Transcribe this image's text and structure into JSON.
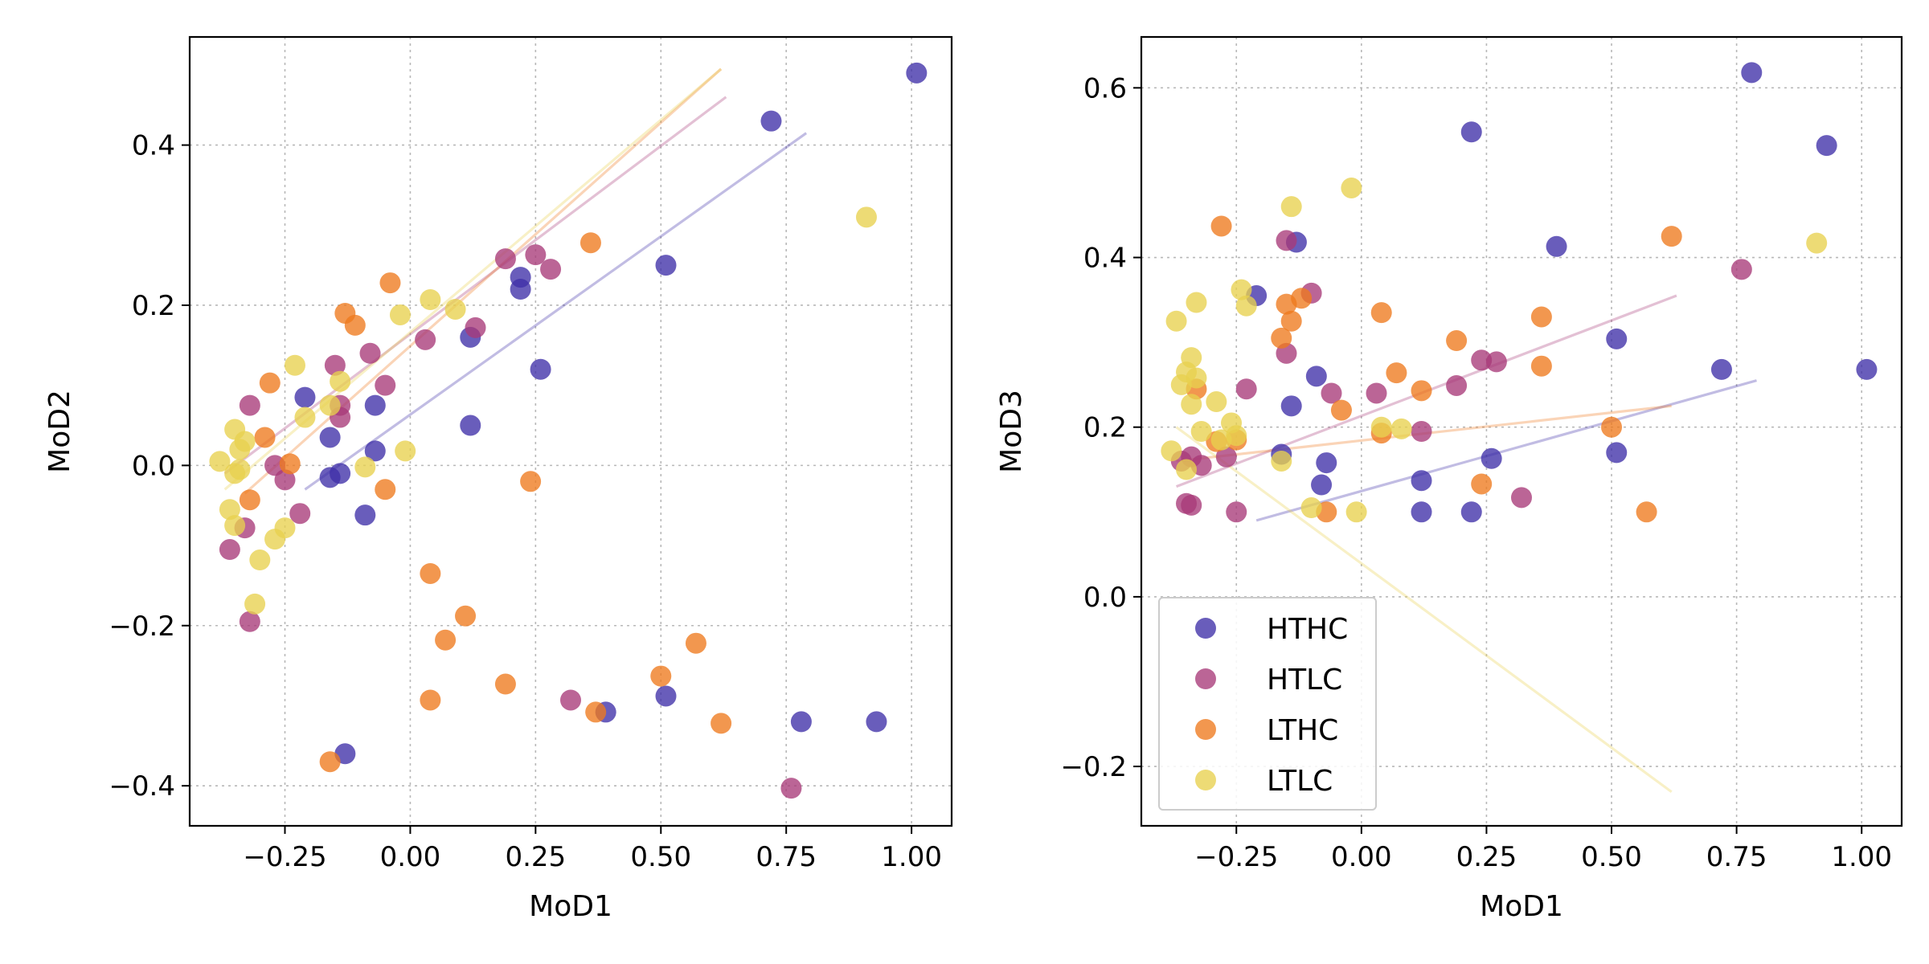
{
  "chart_data": [
    {
      "type": "scatter",
      "xlabel": "MoD1",
      "ylabel": "MoD2",
      "xlim": [
        -0.44,
        1.08
      ],
      "ylim": [
        -0.45,
        0.535
      ],
      "xticks": [
        -0.25,
        0.0,
        0.25,
        0.5,
        0.75,
        1.0
      ],
      "xtick_labels": [
        "−0.25",
        "0.00",
        "0.25",
        "0.50",
        "0.75",
        "1.00"
      ],
      "yticks": [
        -0.4,
        -0.2,
        0.0,
        0.2,
        0.4
      ],
      "ytick_labels": [
        "−0.4",
        "−0.2",
        "0.0",
        "0.2",
        "0.4"
      ],
      "grid": true,
      "series": [
        {
          "name": "HTHC",
          "x": [
            1.01,
            0.72,
            0.51,
            0.22,
            0.22,
            0.26,
            0.12,
            0.12,
            -0.21,
            -0.07,
            -0.16,
            -0.07,
            -0.16,
            -0.14,
            -0.09,
            0.39,
            0.51,
            0.78,
            0.93,
            -0.13
          ],
          "y": [
            0.49,
            0.43,
            0.25,
            0.235,
            0.22,
            0.12,
            0.16,
            0.05,
            0.085,
            0.075,
            0.035,
            0.018,
            -0.015,
            -0.01,
            -0.062,
            -0.308,
            -0.288,
            -0.32,
            -0.32,
            -0.36
          ],
          "trend": {
            "x": [
              -0.21,
              0.79
            ],
            "y": [
              -0.03,
              0.415
            ]
          }
        },
        {
          "name": "HTLC",
          "x": [
            0.19,
            0.25,
            0.28,
            0.13,
            0.03,
            -0.08,
            -0.05,
            -0.15,
            -0.14,
            -0.32,
            -0.14,
            -0.27,
            -0.25,
            -0.22,
            -0.33,
            -0.36,
            -0.32,
            0.32,
            0.76
          ],
          "y": [
            0.258,
            0.263,
            0.245,
            0.172,
            0.157,
            0.14,
            0.1,
            0.125,
            0.075,
            0.075,
            0.06,
            0.0,
            -0.018,
            -0.06,
            -0.078,
            -0.105,
            -0.195,
            -0.293,
            -0.403
          ],
          "trend": {
            "x": [
              -0.37,
              0.63
            ],
            "y": [
              -0.01,
              0.46
            ]
          }
        },
        {
          "name": "LTHC",
          "x": [
            -0.04,
            0.36,
            -0.13,
            -0.11,
            -0.28,
            -0.29,
            -0.24,
            -0.32,
            -0.05,
            0.24,
            0.04,
            0.11,
            0.07,
            0.04,
            0.19,
            0.5,
            0.57,
            0.62,
            0.37,
            -0.16
          ],
          "y": [
            0.228,
            0.278,
            0.19,
            0.175,
            0.103,
            0.035,
            0.002,
            -0.043,
            -0.03,
            -0.02,
            -0.135,
            -0.188,
            -0.218,
            -0.293,
            -0.273,
            -0.263,
            -0.222,
            -0.322,
            -0.308,
            -0.37
          ],
          "trend": {
            "x": [
              -0.33,
              0.62
            ],
            "y": [
              -0.035,
              0.495
            ]
          }
        },
        {
          "name": "LTLC",
          "x": [
            0.91,
            0.04,
            0.09,
            -0.02,
            -0.23,
            -0.14,
            -0.16,
            -0.21,
            -0.35,
            -0.33,
            -0.34,
            -0.38,
            -0.35,
            -0.34,
            -0.36,
            -0.35,
            -0.25,
            -0.27,
            -0.3,
            -0.31,
            -0.09,
            -0.01
          ],
          "y": [
            0.31,
            0.207,
            0.195,
            0.188,
            0.125,
            0.105,
            0.075,
            0.06,
            0.045,
            0.03,
            0.02,
            0.005,
            -0.01,
            -0.005,
            -0.055,
            -0.075,
            -0.078,
            -0.092,
            -0.118,
            -0.173,
            -0.002,
            0.018
          ],
          "trend": {
            "x": [
              -0.37,
              0.62
            ],
            "y": [
              -0.03,
              0.495
            ]
          }
        }
      ]
    },
    {
      "type": "scatter",
      "xlabel": "MoD1",
      "ylabel": "MoD3",
      "xlim": [
        -0.44,
        1.08
      ],
      "ylim": [
        -0.27,
        0.66
      ],
      "xticks": [
        -0.25,
        0.0,
        0.25,
        0.5,
        0.75,
        1.0
      ],
      "xtick_labels": [
        "−0.25",
        "0.00",
        "0.25",
        "0.50",
        "0.75",
        "1.00"
      ],
      "yticks": [
        -0.2,
        0.0,
        0.2,
        0.4,
        0.6
      ],
      "ytick_labels": [
        "−0.2",
        "0.0",
        "0.2",
        "0.4",
        "0.6"
      ],
      "grid": true,
      "legend": {
        "position": "lower-left"
      },
      "series": [
        {
          "name": "HTHC",
          "x": [
            0.78,
            0.93,
            1.01,
            0.22,
            0.39,
            0.72,
            -0.21,
            -0.13,
            0.51,
            -0.14,
            -0.09,
            -0.07,
            -0.16,
            -0.08,
            0.51,
            0.26,
            0.12,
            0.12,
            0.22
          ],
          "y": [
            0.618,
            0.532,
            0.268,
            0.548,
            0.413,
            0.268,
            0.355,
            0.418,
            0.304,
            0.225,
            0.26,
            0.158,
            0.168,
            0.132,
            0.17,
            0.163,
            0.137,
            0.1,
            0.1
          ],
          "trend": {
            "x": [
              -0.21,
              0.79
            ],
            "y": [
              0.09,
              0.255
            ]
          }
        },
        {
          "name": "HTLC",
          "x": [
            0.76,
            -0.15,
            -0.1,
            -0.15,
            -0.23,
            0.03,
            -0.06,
            0.24,
            0.27,
            0.19,
            0.12,
            -0.34,
            -0.32,
            -0.36,
            -0.27,
            -0.35,
            -0.34,
            -0.25,
            0.32
          ],
          "y": [
            0.386,
            0.42,
            0.358,
            0.287,
            0.245,
            0.24,
            0.24,
            0.279,
            0.277,
            0.249,
            0.195,
            0.165,
            0.155,
            0.16,
            0.165,
            0.11,
            0.108,
            0.1,
            0.117
          ],
          "trend": {
            "x": [
              -0.37,
              0.63
            ],
            "y": [
              0.13,
              0.355
            ]
          }
        },
        {
          "name": "LTHC",
          "x": [
            -0.28,
            0.62,
            0.04,
            -0.15,
            -0.12,
            -0.14,
            -0.16,
            -0.33,
            0.19,
            0.36,
            0.36,
            0.07,
            0.12,
            -0.04,
            -0.25,
            -0.29,
            0.04,
            0.5,
            0.57,
            0.24,
            -0.07
          ],
          "y": [
            0.437,
            0.425,
            0.335,
            0.345,
            0.352,
            0.325,
            0.305,
            0.245,
            0.302,
            0.33,
            0.272,
            0.264,
            0.243,
            0.22,
            0.185,
            0.183,
            0.193,
            0.2,
            0.1,
            0.133,
            0.1
          ],
          "trend": {
            "x": [
              -0.37,
              0.62
            ],
            "y": [
              0.16,
              0.225
            ]
          }
        },
        {
          "name": "LTLC",
          "x": [
            -0.02,
            -0.14,
            0.91,
            -0.24,
            -0.23,
            -0.37,
            -0.33,
            -0.34,
            -0.35,
            -0.33,
            -0.36,
            -0.34,
            -0.29,
            -0.26,
            -0.25,
            -0.28,
            -0.32,
            -0.35,
            -0.38,
            0.04,
            0.08,
            -0.16,
            -0.1,
            -0.01
          ],
          "y": [
            0.482,
            0.46,
            0.417,
            0.362,
            0.343,
            0.325,
            0.347,
            0.282,
            0.265,
            0.258,
            0.25,
            0.227,
            0.23,
            0.205,
            0.19,
            0.185,
            0.195,
            0.15,
            0.172,
            0.2,
            0.198,
            0.16,
            0.105,
            0.1
          ],
          "trend": {
            "x": [
              -0.37,
              0.62
            ],
            "y": [
              0.2,
              -0.23
            ]
          }
        }
      ]
    }
  ],
  "colors": {
    "HTHC": "#3f2fa8",
    "HTLC": "#a83a78",
    "LTHC": "#ee7a1e",
    "LTLC": "#e8d14e",
    "grid": "#b8b8b8",
    "axis": "#000000"
  }
}
